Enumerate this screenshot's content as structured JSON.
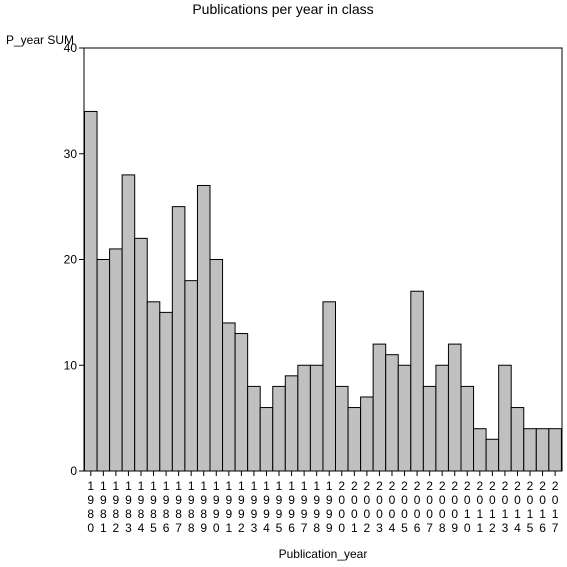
{
  "chart_data": {
    "type": "bar",
    "title": "Publications per year in class",
    "ylabel": "P_year SUM",
    "xlabel": "Publication_year",
    "ylim": [
      0,
      40
    ],
    "yticks": [
      0,
      10,
      20,
      30,
      40
    ],
    "categories": [
      "1980",
      "1981",
      "1982",
      "1983",
      "1984",
      "1985",
      "1986",
      "1987",
      "1988",
      "1989",
      "1990",
      "1991",
      "1992",
      "1993",
      "1994",
      "1995",
      "1996",
      "1997",
      "1998",
      "1999",
      "2000",
      "2001",
      "2002",
      "2003",
      "2004",
      "2005",
      "2006",
      "2007",
      "2008",
      "2009",
      "2010",
      "2011",
      "2012",
      "2013",
      "2014",
      "2015",
      "2016",
      "2017"
    ],
    "values": [
      34,
      20,
      21,
      28,
      22,
      16,
      15,
      25,
      18,
      27,
      20,
      14,
      13,
      8,
      6,
      8,
      9,
      10,
      10,
      16,
      8,
      6,
      7,
      12,
      11,
      10,
      17,
      8,
      10,
      12,
      8,
      4,
      3,
      10,
      6,
      4,
      4,
      4
    ],
    "bar_color": "#c0c0c0",
    "grid": false
  }
}
